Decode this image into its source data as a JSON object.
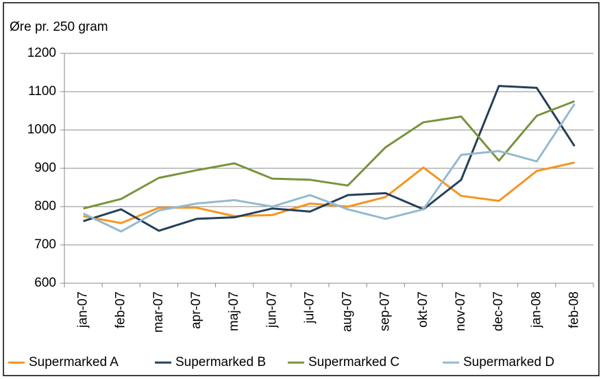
{
  "chart_data": {
    "type": "line",
    "ylabel": "Øre pr. 250 gram",
    "categories": [
      "jan-07",
      "feb-07",
      "mar-07",
      "apr-07",
      "maj-07",
      "jun-07",
      "jul-07",
      "aug-07",
      "sep-07",
      "okt-07",
      "nov-07",
      "dec-07",
      "jan-08",
      "feb-08"
    ],
    "series": [
      {
        "name": "Supermarked A",
        "color": "#f7941d",
        "values": [
          775,
          757,
          797,
          797,
          775,
          778,
          808,
          800,
          825,
          902,
          828,
          815,
          893,
          915
        ]
      },
      {
        "name": "Supermarked B",
        "color": "#243f5a",
        "values": [
          762,
          793,
          737,
          768,
          772,
          795,
          787,
          830,
          835,
          793,
          870,
          1115,
          1110,
          958
        ]
      },
      {
        "name": "Supermarked C",
        "color": "#77933c",
        "values": [
          795,
          820,
          875,
          895,
          913,
          873,
          870,
          855,
          955,
          1020,
          1035,
          920,
          1037,
          1075
        ]
      },
      {
        "name": "Supermarked D",
        "color": "#93b9d0",
        "values": [
          782,
          735,
          790,
          808,
          817,
          800,
          830,
          793,
          768,
          793,
          935,
          945,
          918,
          1068
        ]
      }
    ],
    "ylim": [
      600,
      1200
    ],
    "yticks": [
      600,
      700,
      800,
      900,
      1000,
      1100,
      1200
    ],
    "grid": true,
    "legend": "bottom"
  }
}
